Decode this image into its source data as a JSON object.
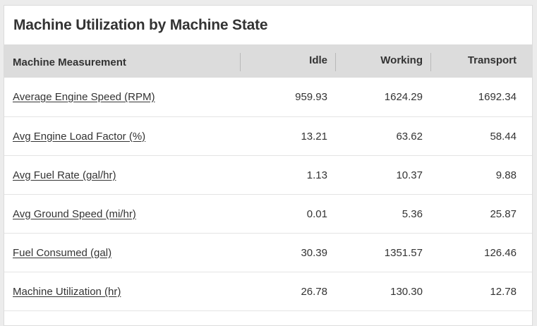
{
  "title": "Machine Utilization by Machine State",
  "columns": [
    "Machine Measurement",
    "Idle",
    "Working",
    "Transport"
  ],
  "rows": [
    {
      "measurement": "Average Engine Speed (RPM)",
      "idle": "959.93",
      "working": "1624.29",
      "transport": "1692.34"
    },
    {
      "measurement": "Avg Engine Load Factor (%)",
      "idle": "13.21",
      "working": "63.62",
      "transport": "58.44"
    },
    {
      "measurement": "Avg Fuel Rate (gal/hr)",
      "idle": "1.13",
      "working": "10.37",
      "transport": "9.88"
    },
    {
      "measurement": "Avg Ground Speed (mi/hr)",
      "idle": "0.01",
      "working": "5.36",
      "transport": "25.87"
    },
    {
      "measurement": "Fuel Consumed (gal)",
      "idle": "30.39",
      "working": "1351.57",
      "transport": "126.46"
    },
    {
      "measurement": "Machine Utilization (hr)",
      "idle": "26.78",
      "working": "130.30",
      "transport": "12.78"
    }
  ]
}
